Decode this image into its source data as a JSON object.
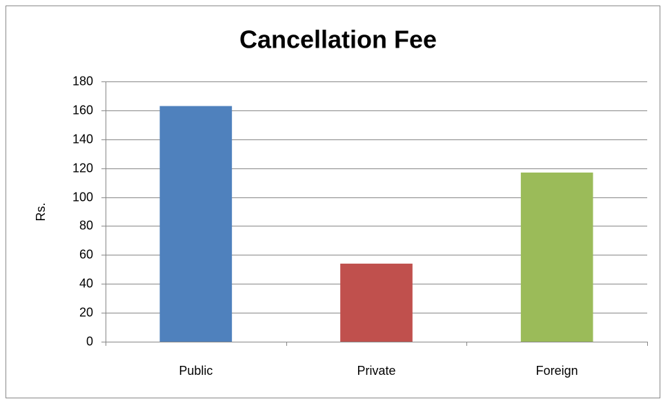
{
  "chart_data": {
    "type": "bar",
    "title": "Cancellation Fee",
    "y_label": "Rs.",
    "categories": [
      "Public",
      "Private",
      "Foreign"
    ],
    "values": [
      163,
      54,
      117
    ],
    "colors": [
      "#4f81bd",
      "#c0504d",
      "#9bbb59"
    ],
    "ylim": [
      0,
      180
    ],
    "yticks": [
      0,
      20,
      40,
      60,
      80,
      100,
      120,
      140,
      160,
      180
    ],
    "grid": true
  }
}
